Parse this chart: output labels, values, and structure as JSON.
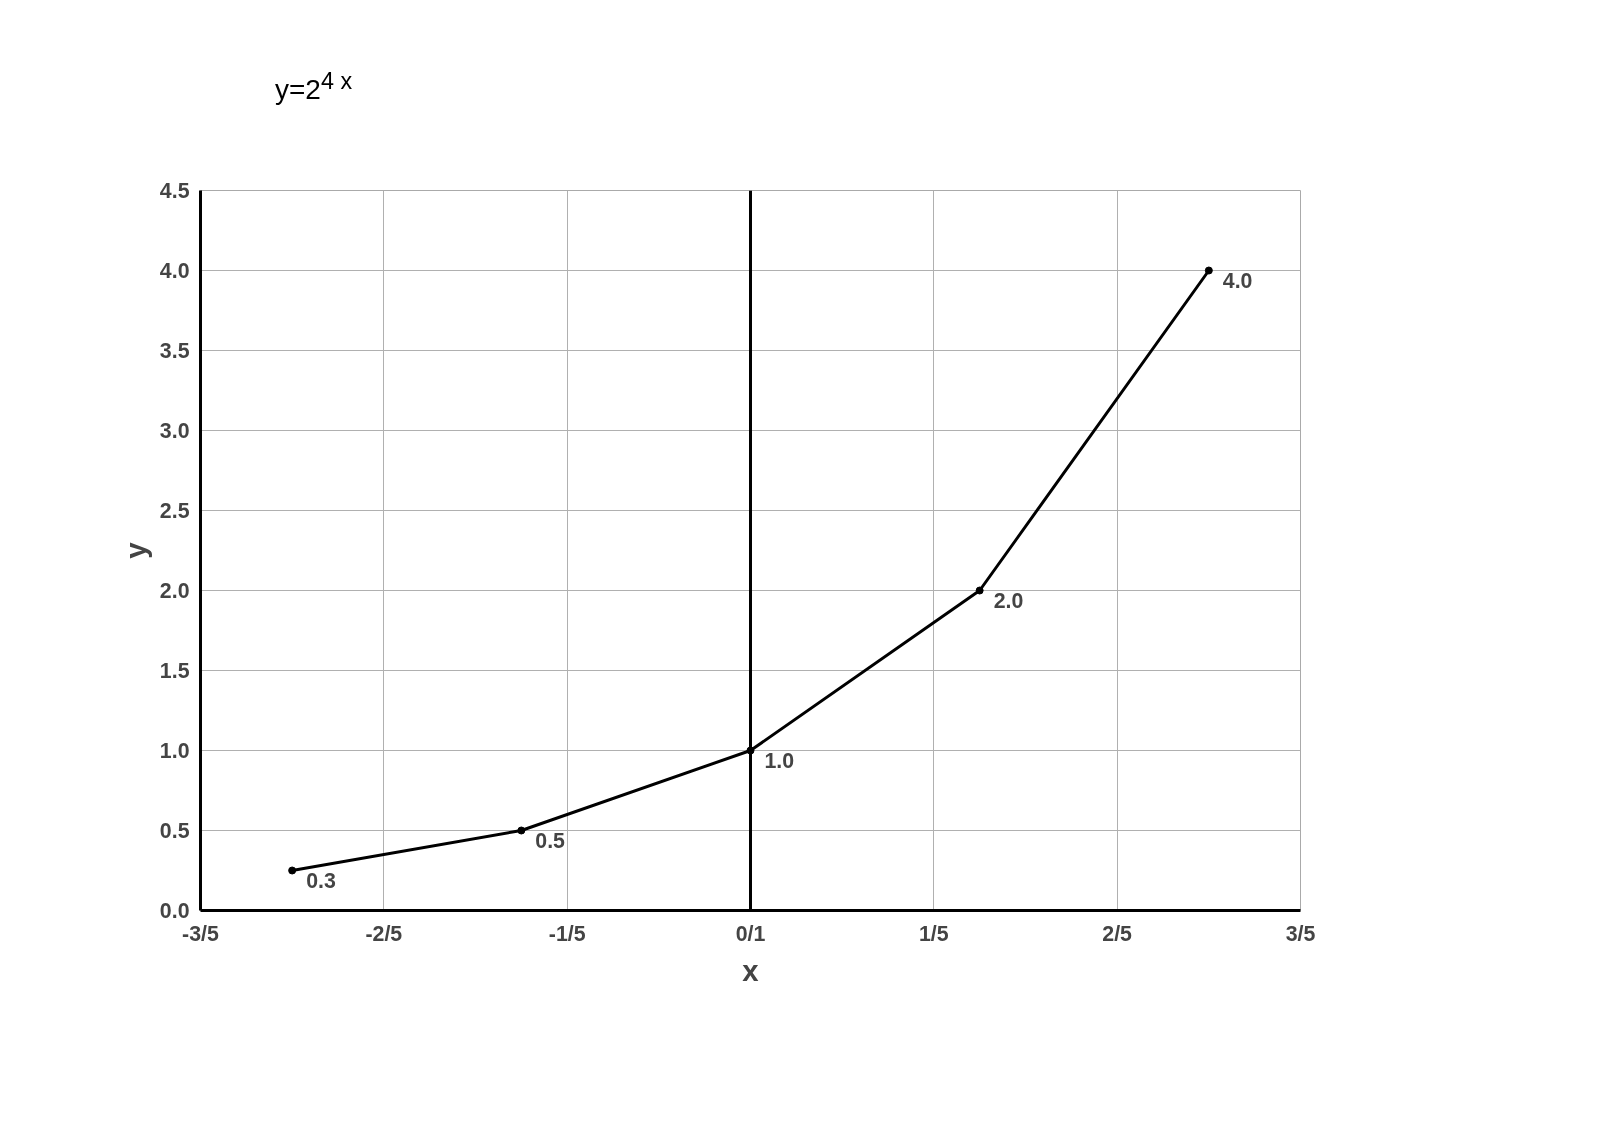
{
  "chart_data": {
    "type": "line",
    "title": "y=2$^{4 x}$",
    "xlabel": "x",
    "ylabel": "y",
    "x": [
      -0.5,
      -0.25,
      0,
      0.25,
      0.5
    ],
    "series": [
      {
        "color": "#000000",
        "values": [
          0.25,
          0.5,
          1.0,
          2.0,
          4.0
        ],
        "value_labels": [
          "0.3",
          "0.5",
          "1.0",
          "2.0",
          "4.0"
        ]
      }
    ],
    "xlim": [
      -0.6,
      0.6
    ],
    "ylim": [
      0,
      4.5
    ],
    "xticks": [
      {
        "value": -0.6,
        "label": "-3/5"
      },
      {
        "value": -0.4,
        "label": "-2/5"
      },
      {
        "value": -0.2,
        "label": "-1/5"
      },
      {
        "value": 0,
        "label": "0/1"
      },
      {
        "value": 0.2,
        "label": "1/5"
      },
      {
        "value": 0.4,
        "label": "2/5"
      },
      {
        "value": 0.6,
        "label": "3/5"
      }
    ],
    "yticks": [
      {
        "value": 0,
        "label": "0.0"
      },
      {
        "value": 0.5,
        "label": "0.5"
      },
      {
        "value": 1,
        "label": "1.0"
      },
      {
        "value": 1.5,
        "label": "1.5"
      },
      {
        "value": 2,
        "label": "2.0"
      },
      {
        "value": 2.5,
        "label": "2.5"
      },
      {
        "value": 3,
        "label": "3.0"
      },
      {
        "value": 3.5,
        "label": "3.5"
      },
      {
        "value": 4,
        "label": "4.0"
      },
      {
        "value": 4.5,
        "label": "4.5"
      }
    ],
    "grid": true,
    "marker": "circle",
    "line_style": "solid"
  }
}
